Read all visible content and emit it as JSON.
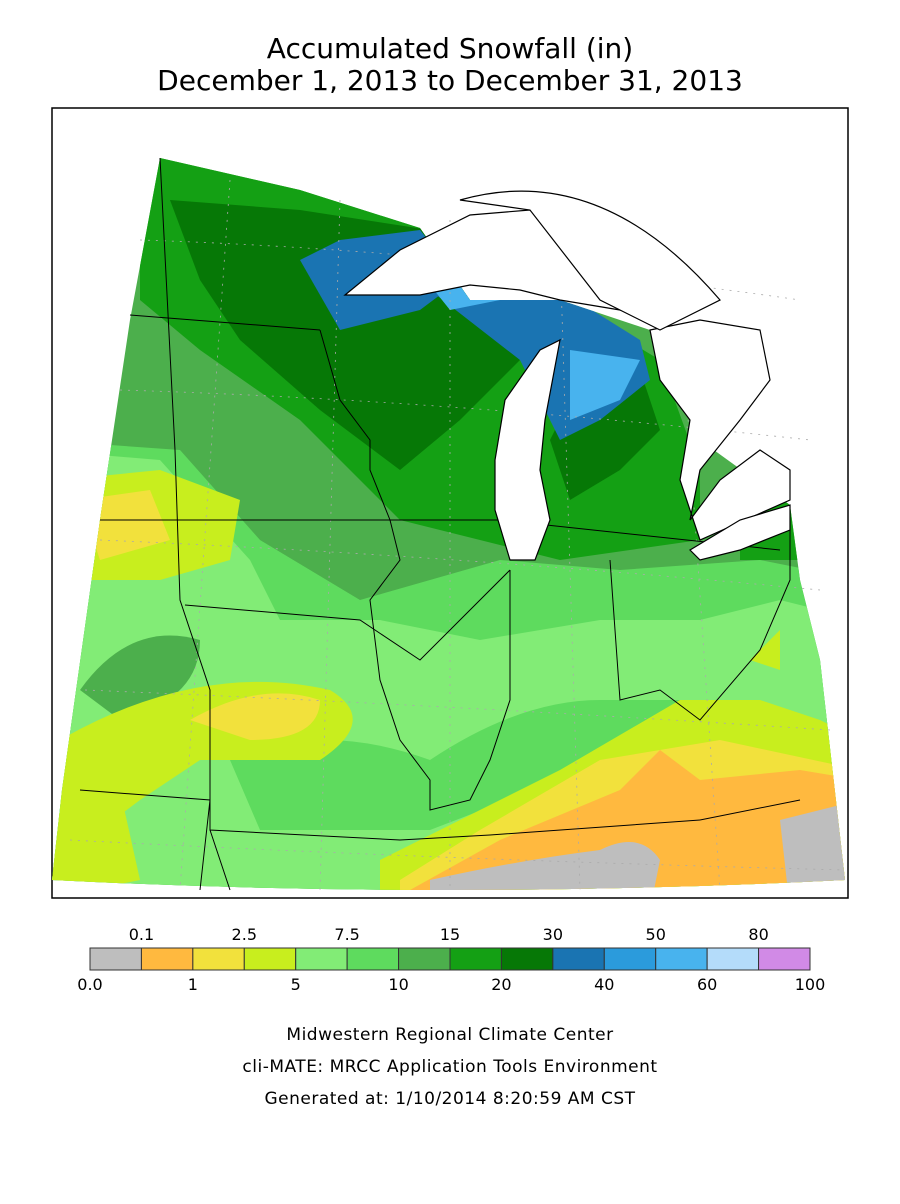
{
  "header": {
    "title": "Accumulated Snowfall (in)",
    "subtitle": "December 1, 2013 to December 31, 2013"
  },
  "legend": {
    "labels": [
      "0.0",
      "0.1",
      "1",
      "2.5",
      "5",
      "7.5",
      "10",
      "15",
      "20",
      "30",
      "40",
      "50",
      "60",
      "80",
      "100"
    ],
    "colors": [
      "#bebebe",
      "#ffb93f",
      "#f2e13c",
      "#c8ee1e",
      "#82ec76",
      "#5edb5e",
      "#4caf4c",
      "#14a014",
      "#067806",
      "#1a74b2",
      "#2b9bdc",
      "#48b3ee",
      "#b4dcfa",
      "#d18ae6"
    ]
  },
  "footer": {
    "lines": [
      "Midwestern Regional Climate Center",
      "cli-MATE: MRCC Application Tools Environment",
      "Generated at: 1/10/2014 8:20:59 AM CST"
    ]
  }
}
